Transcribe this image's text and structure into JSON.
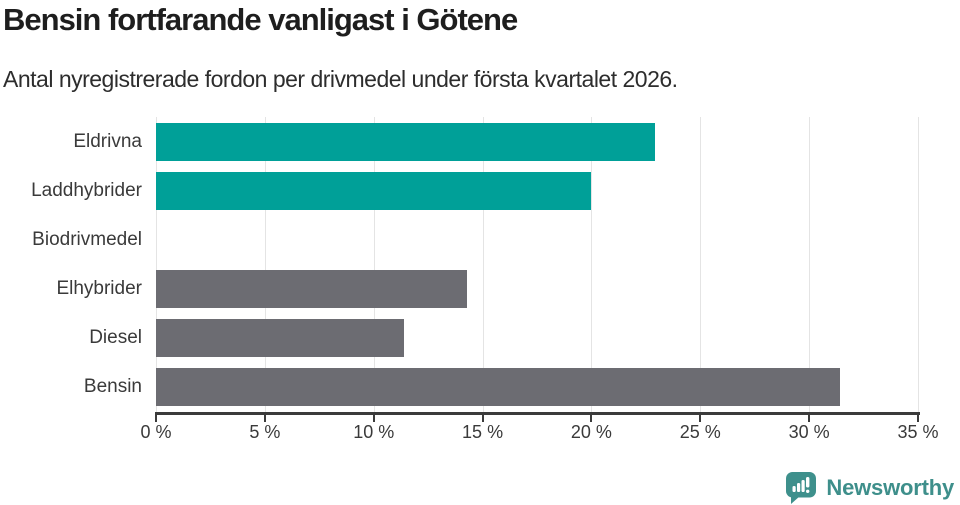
{
  "header": {
    "title": "Bensin fortfarande vanligast i Götene",
    "subtitle": "Antal nyregistrerade fordon per drivmedel under första kvartalet 2026."
  },
  "chart_data": {
    "type": "bar",
    "orientation": "horizontal",
    "title": "Bensin fortfarande vanligast i Götene",
    "subtitle": "Antal nyregistrerade fordon per drivmedel under första kvartalet 2026.",
    "categories": [
      "Eldrivna",
      "Laddhybrider",
      "Biodrivmedel",
      "Elhybrider",
      "Diesel",
      "Bensin"
    ],
    "values": [
      22.9,
      20.0,
      0,
      14.3,
      11.4,
      31.4
    ],
    "unit": "%",
    "xlim": [
      0,
      35
    ],
    "x_ticks": [
      0,
      5,
      10,
      15,
      20,
      25,
      30,
      35
    ],
    "x_tick_labels": [
      "0 %",
      "5 %",
      "10 %",
      "15 %",
      "20 %",
      "25 %",
      "30 %",
      "35 %"
    ],
    "bar_colors": [
      "#00a098",
      "#00a098",
      "#6c6c72",
      "#6c6c72",
      "#6c6c72",
      "#6c6c72"
    ],
    "colors": {
      "highlight": "#00a098",
      "default": "#6c6c72",
      "gridline": "#e4e4e4",
      "axis": "#3b3b3b"
    },
    "grid": "vertical",
    "legend": "none"
  },
  "footer": {
    "brand": "Newsworthy",
    "brand_color": "#3e8f8b"
  }
}
